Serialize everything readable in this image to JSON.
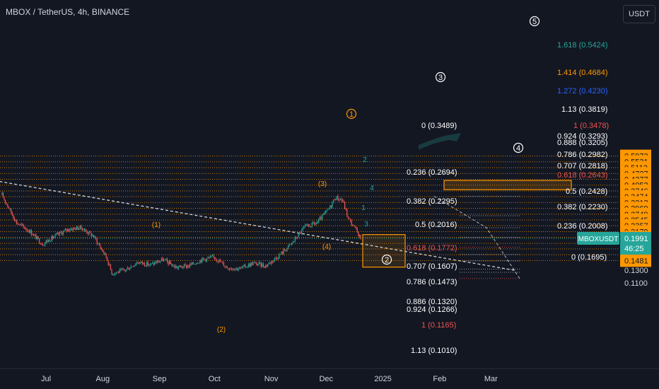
{
  "header": {
    "title": "MBOX / TetherUS, 4h, BINANCE",
    "currency_button": "USDT"
  },
  "price_axis": {
    "labels": [
      "0.5973",
      "0.5531",
      "0.5113",
      "0.4727",
      "0.4377",
      "0.4052",
      "0.3746",
      "0.3474",
      "0.3212",
      "0.2969",
      "0.2749",
      "0.2545",
      "0.2357",
      "0.2179",
      "0.2017",
      "0.1862",
      "0.1730",
      "0.1601",
      "0.1481",
      "0.1300",
      "0.1100"
    ],
    "highlighted": [
      "0.5973",
      "0.5531",
      "0.5113",
      "0.4727",
      "0.4377",
      "0.4052",
      "0.3746",
      "0.3474",
      "0.3212",
      "0.2969",
      "0.2749",
      "0.2545",
      "0.2357",
      "0.2179",
      "0.2017",
      "0.1862",
      "0.1730",
      "0.1601",
      "0.1481"
    ],
    "current_symbol": "MBOXUSDT",
    "current_price": "0.1991",
    "countdown": "46:25"
  },
  "time_axis": {
    "labels": [
      "Jul",
      "Aug",
      "Sep",
      "Oct",
      "Nov",
      "Dec",
      "2025",
      "Feb",
      "Mar"
    ]
  },
  "fib_labels": [
    {
      "text": "1.618 (0.5424)",
      "color": "#26a69a"
    },
    {
      "text": "1.414 (0.4684)",
      "color": "#ff9800"
    },
    {
      "text": "1.272 (0.4230)",
      "color": "#2962ff"
    },
    {
      "text": "1.13 (0.3819)",
      "color": "#ffffff"
    },
    {
      "text": "1 (0.3478)",
      "color": "#ef5350"
    },
    {
      "text": "0.924 (0.3293)",
      "color": "#ffffff"
    },
    {
      "text": "0.888 (0.3205)",
      "color": "#ffffff"
    },
    {
      "text": "0.786 (0.2982)",
      "color": "#ffffff"
    },
    {
      "text": "0.707 (0.2818)",
      "color": "#ffffff"
    },
    {
      "text": "0.618 (0.2643)",
      "color": "#ef5350"
    },
    {
      "text": "0.5 (0.2428)",
      "color": "#ffffff"
    },
    {
      "text": "0.382 (0.2230)",
      "color": "#ffffff"
    },
    {
      "text": "0.236 (0.2008)",
      "color": "#ffffff"
    },
    {
      "text": "0 (0.1695)",
      "color": "#ffffff"
    },
    {
      "text": "0 (0.3489)",
      "color": "#ffffff"
    },
    {
      "text": "0.236 (0.2694)",
      "color": "#ffffff"
    },
    {
      "text": "0.382 (0.2295)",
      "color": "#ffffff"
    },
    {
      "text": "0.5 (0.2016)",
      "color": "#ffffff"
    },
    {
      "text": "0.618 (0.1772)",
      "color": "#ef5350"
    },
    {
      "text": "0.707 (0.1607)",
      "color": "#ffffff"
    },
    {
      "text": "0.786 (0.1473)",
      "color": "#ffffff"
    },
    {
      "text": "0.886 (0.1320)",
      "color": "#ffffff"
    },
    {
      "text": "0.924 (0.1266)",
      "color": "#ffffff"
    },
    {
      "text": "1 (0.1165)",
      "color": "#ef5350"
    },
    {
      "text": "1.13 (0.1010)",
      "color": "#ffffff"
    }
  ],
  "wave_labels": [
    {
      "text": "(1)",
      "color": "#ff9800"
    },
    {
      "text": "(2)",
      "color": "#ff9800"
    },
    {
      "text": "(3)",
      "color": "#ff9800"
    },
    {
      "text": "(4)",
      "color": "#ff9800"
    },
    {
      "text": "1",
      "color": "#ff9800"
    },
    {
      "text": "2",
      "color": "#ffffff"
    },
    {
      "text": "3",
      "color": "#ffffff"
    },
    {
      "text": "4",
      "color": "#ffffff"
    },
    {
      "text": "5",
      "color": "#ffffff"
    },
    {
      "text": "2",
      "color": "#26a69a"
    },
    {
      "text": "4",
      "color": "#26a69a"
    },
    {
      "text": "1",
      "color": "#26a69a"
    },
    {
      "text": "3",
      "color": "#26a69a"
    }
  ],
  "colors": {
    "background": "#131722",
    "up": "#26a69a",
    "down": "#ef5350",
    "fib": "#ff9800",
    "accent": "#26a69a"
  },
  "chart_data": {
    "type": "candlestick",
    "title": "MBOX / TetherUS, 4h, BINANCE",
    "y_scale": "log",
    "ylim": [
      0.105,
      0.64
    ],
    "x_range": [
      "2024-06-07",
      "2025-03-14"
    ],
    "series": [
      {
        "name": "MBOXUSDT",
        "x": [
          "2024-06-07",
          "2024-06-15",
          "2024-06-22",
          "2024-06-29",
          "2024-07-06",
          "2024-07-13",
          "2024-07-20",
          "2024-07-27",
          "2024-08-03",
          "2024-08-06",
          "2024-08-13",
          "2024-08-20",
          "2024-08-27",
          "2024-09-03",
          "2024-09-10",
          "2024-09-17",
          "2024-09-24",
          "2024-10-01",
          "2024-10-08",
          "2024-10-15",
          "2024-10-22",
          "2024-10-29",
          "2024-11-05",
          "2024-11-12",
          "2024-11-19",
          "2024-11-26",
          "2024-12-03",
          "2024-12-06",
          "2024-12-10",
          "2024-12-13",
          "2024-12-17",
          "2024-12-20"
        ],
        "values": [
          0.355,
          0.245,
          0.22,
          0.185,
          0.205,
          0.225,
          0.23,
          0.205,
          0.155,
          0.125,
          0.13,
          0.145,
          0.14,
          0.15,
          0.135,
          0.138,
          0.15,
          0.155,
          0.135,
          0.133,
          0.143,
          0.138,
          0.158,
          0.185,
          0.23,
          0.245,
          0.3,
          0.345,
          0.33,
          0.26,
          0.225,
          0.199
        ]
      }
    ],
    "current_price": 0.1991,
    "trendline": {
      "from": [
        "2024-06-03",
        0.43
      ],
      "to": [
        "2025-03-14",
        0.13
      ]
    }
  }
}
